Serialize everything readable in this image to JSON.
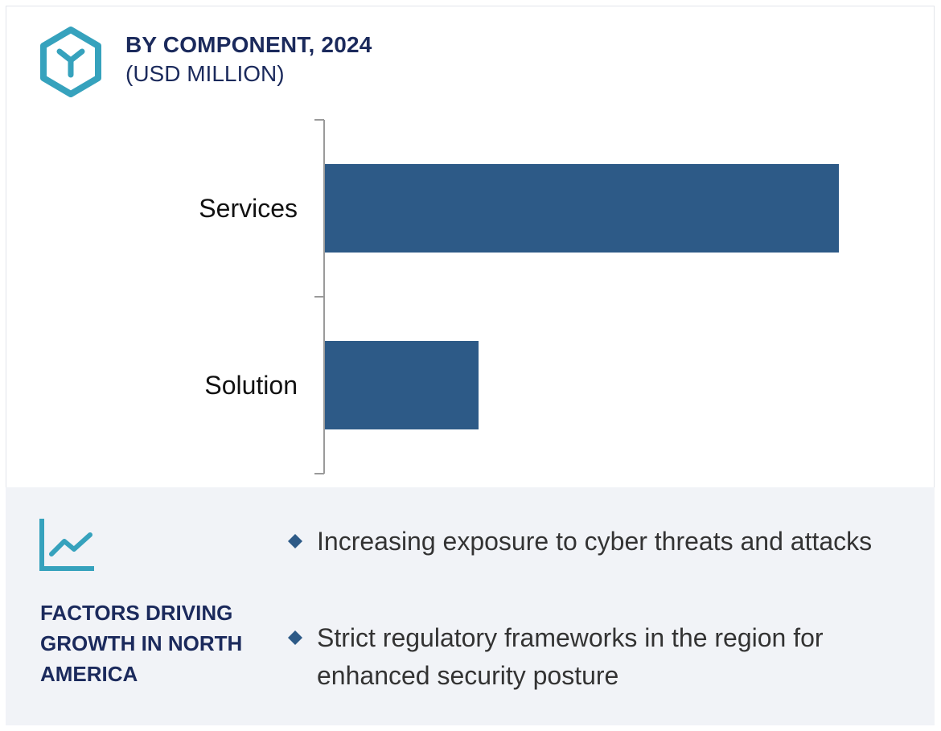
{
  "header": {
    "title": "BY COMPONENT, 2024",
    "subtitle": "(USD MILLION)",
    "icon": "hexagon-y-icon"
  },
  "colors": {
    "accent": "#36a2bd",
    "bar": "#2d5a87",
    "navy": "#1b2a5c",
    "panel": "#f1f3f7"
  },
  "chart_data": {
    "type": "bar",
    "orientation": "horizontal",
    "categories": [
      "Services",
      "Solution"
    ],
    "values": [
      100,
      30
    ],
    "xlim": [
      0,
      100
    ],
    "title": "BY COMPONENT, 2024",
    "xlabel": "",
    "ylabel": "",
    "grid": false,
    "axis_tick_labels": false
  },
  "factors": {
    "icon": "trend-line-icon",
    "title": "FACTORS DRIVING GROWTH IN NORTH AMERICA",
    "items": [
      {
        "text": "Increasing exposure to cyber threats and attacks"
      },
      {
        "text": "Strict regulatory frameworks in the region for enhanced security posture"
      }
    ]
  }
}
